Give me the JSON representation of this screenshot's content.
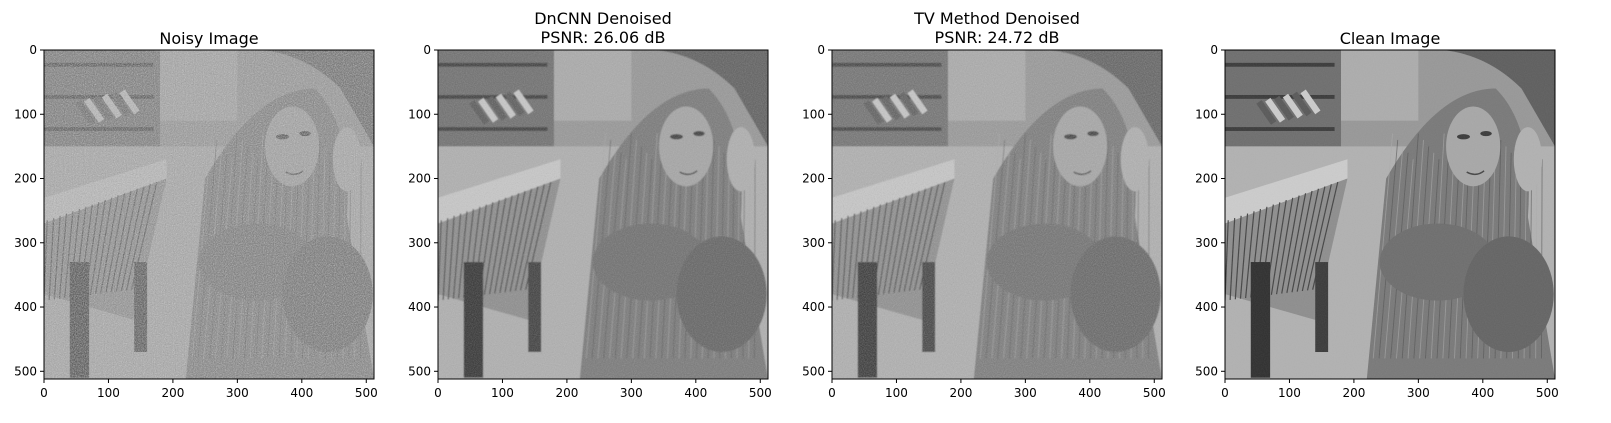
{
  "panels": [
    {
      "title_line1": "Noisy Image",
      "title_line2": "",
      "noise": 0.9,
      "blur": 0.0,
      "contrast": 0.8
    },
    {
      "title_line1": "DnCNN Denoised",
      "title_line2": "PSNR: 26.06 dB",
      "noise": 0.35,
      "blur": 0.6,
      "contrast": 1.0
    },
    {
      "title_line1": "TV Method Denoised",
      "title_line2": "PSNR: 24.72 dB",
      "noise": 0.45,
      "blur": 0.4,
      "contrast": 1.0
    },
    {
      "title_line1": "Clean Image",
      "title_line2": "",
      "noise": 0.12,
      "blur": 0.0,
      "contrast": 1.05
    }
  ],
  "axes": {
    "x_ticks": [
      "0",
      "100",
      "200",
      "300",
      "400",
      "500"
    ],
    "y_ticks": [
      "0",
      "100",
      "200",
      "300",
      "400",
      "500"
    ],
    "x_tick_values": [
      0,
      100,
      200,
      300,
      400,
      500
    ],
    "y_tick_values": [
      0,
      100,
      200,
      300,
      400,
      500
    ],
    "xlim": [
      0,
      512
    ],
    "ylim": [
      0,
      512
    ]
  },
  "colors": {
    "axis": "#000000",
    "background": "#ffffff"
  }
}
